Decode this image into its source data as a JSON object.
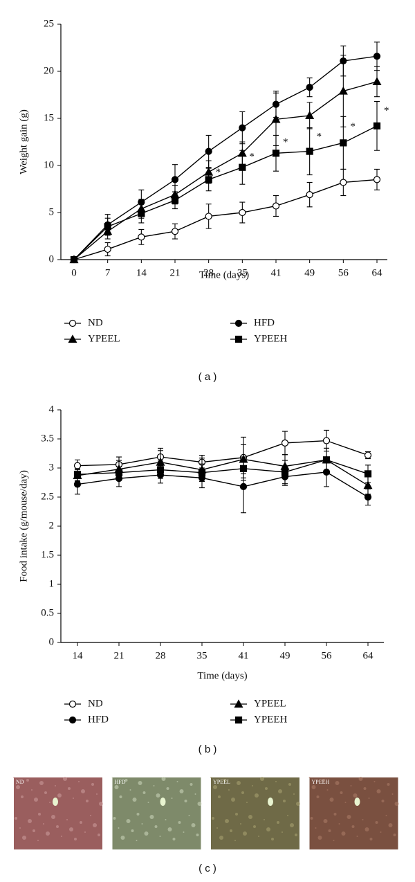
{
  "chart_data": [
    {
      "type": "line",
      "panel_label": "( a )",
      "xlabel": "Time (days)",
      "ylabel": "Weight gain (g)",
      "categories": [
        "0",
        "7",
        "14",
        "21",
        "28",
        "35",
        "41",
        "49",
        "56",
        "64"
      ],
      "ylim": [
        0,
        25
      ],
      "yticks": [
        0,
        5,
        10,
        15,
        20,
        25
      ],
      "series": [
        {
          "name": "ND",
          "color": "#000000",
          "marker": "open-circle",
          "values": [
            0,
            1.1,
            2.4,
            3.0,
            4.6,
            5.0,
            5.7,
            6.9,
            8.2,
            8.5
          ],
          "errors": [
            0,
            0.7,
            0.8,
            0.8,
            1.3,
            1.1,
            1.1,
            1.3,
            1.4,
            1.1
          ]
        },
        {
          "name": "YPEEL",
          "color": "#000000",
          "marker": "triangle",
          "values": [
            0,
            3.0,
            5.4,
            6.9,
            9.3,
            11.3,
            14.9,
            15.3,
            17.9,
            18.9
          ],
          "errors": [
            0,
            0.8,
            1.0,
            1.0,
            1.2,
            1.2,
            2.8,
            1.4,
            3.8,
            1.6
          ]
        },
        {
          "name": "HFD",
          "color": "#000000",
          "marker": "filled-circle",
          "values": [
            0,
            3.7,
            6.1,
            8.5,
            11.5,
            14.0,
            16.5,
            18.3,
            21.1,
            21.6
          ],
          "errors": [
            0,
            1.1,
            1.3,
            1.6,
            1.7,
            1.7,
            1.4,
            1.0,
            1.6,
            1.5
          ]
        },
        {
          "name": "YPEEH",
          "color": "#000000",
          "marker": "square",
          "values": [
            0,
            3.5,
            4.9,
            6.3,
            8.5,
            9.8,
            11.3,
            11.5,
            12.4,
            14.2
          ],
          "errors": [
            0,
            0.9,
            1.0,
            0.9,
            1.2,
            1.8,
            1.9,
            2.5,
            2.8,
            2.6
          ]
        }
      ],
      "annotations": [
        {
          "text": "*",
          "category": 4
        },
        {
          "text": "*",
          "category": 5
        },
        {
          "text": "*",
          "category": 6
        },
        {
          "text": "*",
          "category": 7
        },
        {
          "text": "*",
          "category": 8
        },
        {
          "text": "*",
          "category": 9
        }
      ]
    },
    {
      "type": "line",
      "panel_label": "( b )",
      "xlabel": "Time (days)",
      "ylabel": "Food intake (g/mouse/day)",
      "categories": [
        "14",
        "21",
        "28",
        "35",
        "41",
        "49",
        "56",
        "64"
      ],
      "ylim": [
        0,
        4
      ],
      "yticks": [
        0,
        0.5,
        1,
        1.5,
        2,
        2.5,
        3,
        3.5,
        4
      ],
      "series": [
        {
          "name": "ND",
          "color": "#000000",
          "marker": "open-circle",
          "values": [
            3.04,
            3.06,
            3.19,
            3.1,
            3.18,
            3.43,
            3.47,
            3.22
          ],
          "errors": [
            0.1,
            0.13,
            0.15,
            0.12,
            0.35,
            0.2,
            0.18,
            0.06
          ]
        },
        {
          "name": "HFD",
          "color": "#000000",
          "marker": "filled-circle",
          "values": [
            2.72,
            2.82,
            2.88,
            2.83,
            2.68,
            2.85,
            2.93,
            2.5
          ],
          "errors": [
            0.17,
            0.14,
            0.14,
            0.17,
            0.45,
            0.15,
            0.25,
            0.14
          ]
        },
        {
          "name": "YPEEL",
          "color": "#000000",
          "marker": "triangle",
          "values": [
            2.87,
            2.98,
            3.1,
            2.97,
            3.15,
            3.03,
            3.14,
            2.7
          ],
          "errors": [
            0.1,
            0.15,
            0.2,
            0.2,
            0.25,
            0.2,
            0.2,
            0.15
          ]
        },
        {
          "name": "YPEEH",
          "color": "#000000",
          "marker": "square",
          "values": [
            2.89,
            2.92,
            2.97,
            2.92,
            2.99,
            2.93,
            3.14,
            2.9
          ],
          "errors": [
            0.1,
            0.1,
            0.15,
            0.15,
            0.2,
            0.2,
            0.2,
            0.15
          ]
        }
      ]
    }
  ],
  "panel_c": {
    "panel_label": "( c )",
    "images": [
      "ND",
      "HFD",
      "YPEEL",
      "YPEEH"
    ]
  }
}
